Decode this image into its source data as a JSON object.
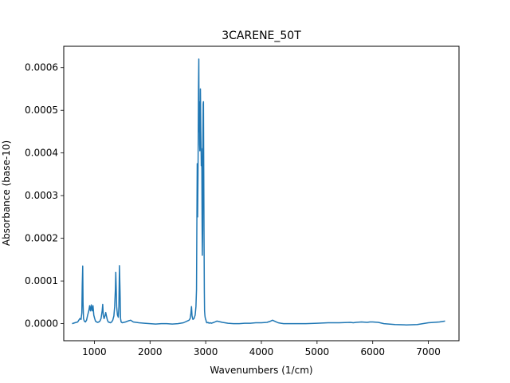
{
  "chart_data": {
    "type": "line",
    "title": "3CARENE_50T",
    "xlabel": "Wavenumbers (1/cm)",
    "ylabel": "Absorbance (base-10)",
    "xlim": [
      450,
      7550
    ],
    "ylim": [
      -4e-05,
      0.00065
    ],
    "xticks": [
      1000,
      2000,
      3000,
      4000,
      5000,
      6000,
      7000
    ],
    "xtick_labels": [
      "1000",
      "2000",
      "3000",
      "4000",
      "5000",
      "6000",
      "7000"
    ],
    "yticks": [
      0,
      0.0001,
      0.0002,
      0.0003,
      0.0004,
      0.0005,
      0.0006
    ],
    "ytick_labels": [
      "0.0000",
      "0.0001",
      "0.0002",
      "0.0003",
      "0.0004",
      "0.0005",
      "0.0006"
    ],
    "grid": false,
    "series": [
      {
        "color": "#1f77b4",
        "x": [
          600,
          650,
          700,
          720,
          740,
          760,
          775,
          782,
          790,
          797,
          805,
          820,
          840,
          860,
          880,
          900,
          915,
          930,
          945,
          960,
          975,
          990,
          1005,
          1020,
          1040,
          1060,
          1080,
          1100,
          1120,
          1140,
          1150,
          1160,
          1175,
          1190,
          1205,
          1220,
          1235,
          1250,
          1270,
          1290,
          1310,
          1330,
          1350,
          1365,
          1378,
          1385,
          1392,
          1400,
          1415,
          1430,
          1440,
          1450,
          1460,
          1470,
          1480,
          1500,
          1530,
          1560,
          1600,
          1650,
          1700,
          1800,
          1900,
          2000,
          2100,
          2200,
          2300,
          2400,
          2500,
          2600,
          2700,
          2720,
          2735,
          2745,
          2755,
          2770,
          2790,
          2810,
          2825,
          2835,
          2840,
          2848,
          2855,
          2862,
          2870,
          2876,
          2880,
          2885,
          2890,
          2895,
          2900,
          2905,
          2910,
          2915,
          2920,
          2925,
          2930,
          2935,
          2940,
          2945,
          2950,
          2955,
          2960,
          2965,
          2970,
          2975,
          2980,
          2985,
          2990,
          2995,
          3000,
          3005,
          3010,
          3015,
          3020,
          3030,
          3040,
          3050,
          3060,
          3080,
          3100,
          3150,
          3200,
          3300,
          3400,
          3500,
          3600,
          3700,
          3800,
          3900,
          4000,
          4100,
          4150,
          4200,
          4250,
          4300,
          4350,
          4400,
          4500,
          4600,
          4800,
          5000,
          5200,
          5400,
          5600,
          5650,
          5700,
          5800,
          5900,
          5950,
          6000,
          6100,
          6200,
          6400,
          6600,
          6800,
          7000,
          7200,
          7300
        ],
        "y": [
          0,
          2e-06,
          4e-06,
          8e-06,
          1.2e-05,
          1e-05,
          2.5e-05,
          9e-05,
          0.000135,
          5e-05,
          1.2e-05,
          6e-06,
          4e-06,
          8e-06,
          2e-05,
          3e-05,
          4.2e-05,
          3e-05,
          4.4e-05,
          3e-05,
          4.2e-05,
          2e-05,
          1.2e-05,
          6e-06,
          4e-06,
          3e-06,
          4e-06,
          6e-06,
          1.2e-05,
          3e-05,
          4.5e-05,
          2e-05,
          1.2e-05,
          1.8e-05,
          2.6e-05,
          1.6e-05,
          8e-06,
          4e-06,
          3e-06,
          2e-06,
          4e-06,
          8e-06,
          1.8e-05,
          4e-05,
          8e-05,
          0.00012,
          8.5e-05,
          4e-05,
          2e-05,
          1.5e-05,
          4e-05,
          0.000136,
          8e-05,
          1.2e-05,
          4e-06,
          2e-06,
          3e-06,
          4e-06,
          6e-06,
          8e-06,
          4e-06,
          2e-06,
          1e-06,
          0,
          -1e-06,
          0,
          0,
          -1e-06,
          0,
          2e-06,
          8e-06,
          1.2e-05,
          2.5e-05,
          4e-05,
          1.8e-05,
          1e-05,
          1.2e-05,
          2e-05,
          4e-05,
          8e-05,
          0.00022,
          0.000375,
          0.00025,
          0.00035,
          0.000555,
          0.00062,
          0.00045,
          0.00052,
          0.00042,
          0.000405,
          0.00045,
          0.00055,
          0.00048,
          0.00043,
          0.00037,
          0.00041,
          0.00036,
          0.00024,
          0.00016,
          0.00022,
          0.00042,
          0.000515,
          0.00052,
          0.00035,
          0.00022,
          8e-05,
          3e-05,
          2e-05,
          1.5e-05,
          1.2e-05,
          1e-05,
          8e-06,
          5e-06,
          3e-06,
          2e-06,
          2e-06,
          3e-06,
          2e-06,
          1e-06,
          2e-06,
          1e-06,
          3e-06,
          6e-06,
          3e-06,
          1e-06,
          0,
          0,
          1e-06,
          1e-06,
          2e-06,
          2e-06,
          3e-06,
          5e-06,
          8e-06,
          5e-06,
          2e-06,
          1e-06,
          0,
          0,
          0,
          0,
          1e-06,
          2e-06,
          2e-06,
          3e-06,
          2e-06,
          3e-06,
          4e-06,
          3e-06,
          4e-06,
          4e-06,
          3e-06,
          0,
          -2e-06,
          -3e-06,
          -2e-06,
          2e-06,
          4e-06,
          6e-06
        ]
      }
    ]
  }
}
